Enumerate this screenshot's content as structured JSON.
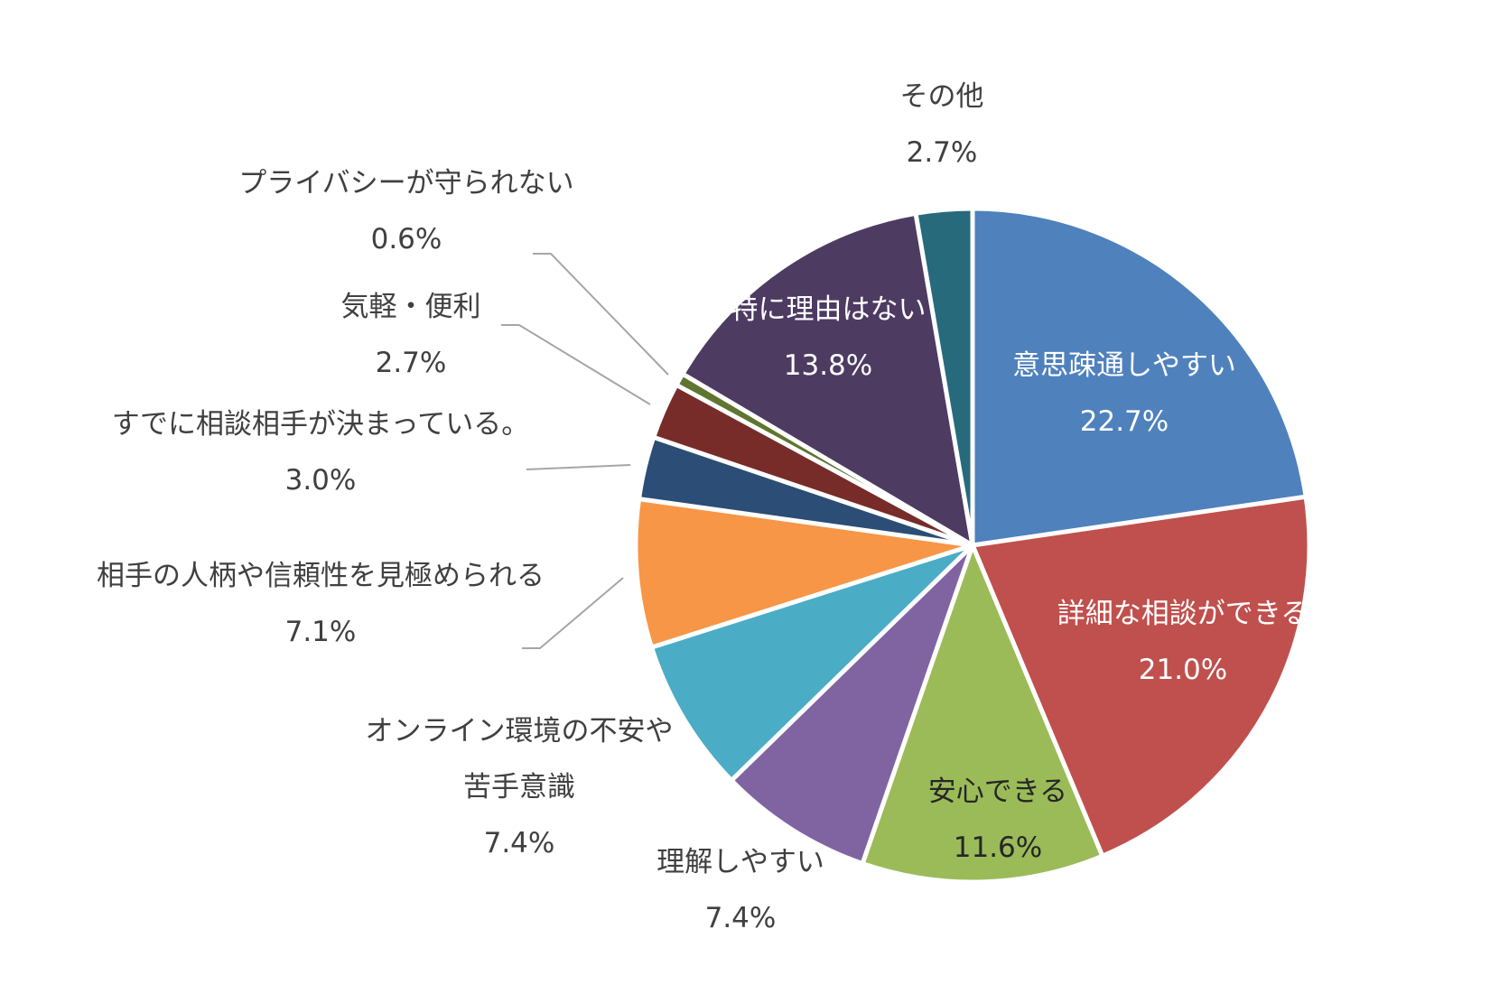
{
  "chart_data": {
    "type": "pie",
    "title": "",
    "start_angle_deg": 0,
    "direction": "clockwise",
    "slices": [
      {
        "name": "意思疎通しやすい",
        "value": 22.7,
        "value_label": "22.7%",
        "color": "#4F81BD",
        "label_color": "#ffffff",
        "label_lines": [
          "意思疎通しやすい"
        ]
      },
      {
        "name": "詳細な相談ができる",
        "value": 21.0,
        "value_label": "21.0%",
        "color": "#C0504D",
        "label_color": "#ffffff",
        "label_lines": [
          "詳細な相談ができる"
        ]
      },
      {
        "name": "安心できる",
        "value": 11.6,
        "value_label": "11.6%",
        "color": "#9BBB59",
        "label_color": "#262626",
        "label_lines": [
          "安心できる"
        ]
      },
      {
        "name": "理解しやすい",
        "value": 7.4,
        "value_label": "7.4%",
        "color": "#8064A2",
        "label_color": "#404040",
        "label_lines": [
          "理解しやすい"
        ]
      },
      {
        "name": "オンライン環境の不安や苦手意識",
        "value": 7.4,
        "value_label": "7.4%",
        "color": "#4BACC6",
        "label_color": "#404040",
        "label_lines": [
          "オンライン環境の不安や",
          "苦手意識"
        ]
      },
      {
        "name": "相手の人柄や信頼性を見極められる",
        "value": 7.1,
        "value_label": "7.1%",
        "color": "#F79646",
        "label_color": "#404040",
        "label_lines": [
          "相手の人柄や信頼性を見極められる"
        ]
      },
      {
        "name": "すでに相談相手が決まっている。",
        "value": 3.0,
        "value_label": "3.0%",
        "color": "#2C4D75",
        "label_color": "#404040",
        "label_lines": [
          "すでに相談相手が決まっている。"
        ]
      },
      {
        "name": "気軽・便利",
        "value": 2.7,
        "value_label": "2.7%",
        "color": "#772C2A",
        "label_color": "#404040",
        "label_lines": [
          "気軽・便利"
        ]
      },
      {
        "name": "プライバシーが守られない",
        "value": 0.6,
        "value_label": "0.6%",
        "color": "#5F7530",
        "label_color": "#404040",
        "label_lines": [
          "プライバシーが守られない"
        ]
      },
      {
        "name": "特に理由はない",
        "value": 13.8,
        "value_label": "13.8%",
        "color": "#4D3B62",
        "label_color": "#ffffff",
        "label_lines": [
          "特に理由はない"
        ]
      },
      {
        "name": "その他",
        "value": 2.7,
        "value_label": "2.7%",
        "color": "#276A7C",
        "label_color": "#404040",
        "label_lines": [
          "その他"
        ]
      }
    ],
    "legend": "none"
  }
}
